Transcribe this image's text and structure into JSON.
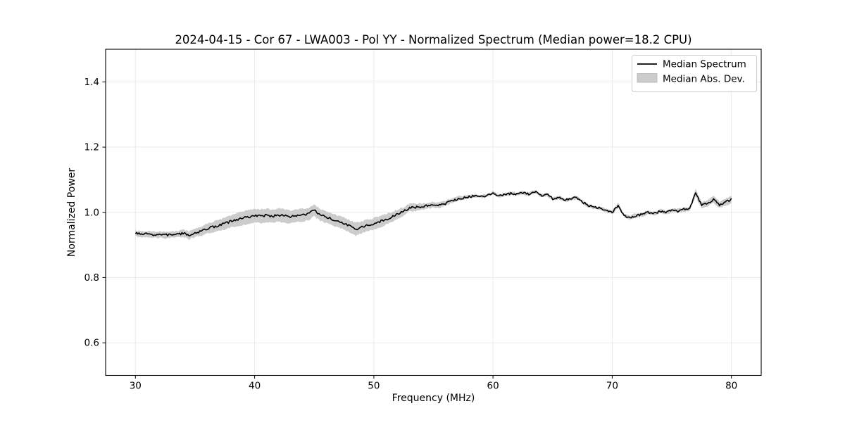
{
  "figure": {
    "title": "2024-04-15 - Cor 67 - LWA003 - Pol YY - Normalized Spectrum (Median power=18.2 CPU)",
    "xlabel": "Frequency (MHz)",
    "ylabel": "Normalized Power"
  },
  "legend": {
    "position": "upper right",
    "items": [
      {
        "label": "Median Spectrum",
        "type": "line",
        "color": "#000000"
      },
      {
        "label": "Median Abs. Dev.",
        "type": "patch",
        "color": "#cccccc"
      }
    ]
  },
  "colors": {
    "line": "#000000",
    "band": "#cccccc",
    "grid": "#e8e8e8",
    "spine": "#000000",
    "background": "#ffffff",
    "legend_border": "#cccccc"
  },
  "chart_data": {
    "type": "line",
    "title": "2024-04-15 - Cor 67 - LWA003 - Pol YY - Normalized Spectrum (Median power=18.2 CPU)",
    "xlabel": "Frequency (MHz)",
    "ylabel": "Normalized Power",
    "xlim": [
      27.5,
      82.5
    ],
    "ylim": [
      0.5,
      1.5
    ],
    "xticks": [
      30,
      40,
      50,
      60,
      70,
      80
    ],
    "yticks": [
      0.6,
      0.8,
      1.0,
      1.2,
      1.4
    ],
    "grid": true,
    "legend_position": "upper right",
    "series": [
      {
        "name": "Median Spectrum",
        "type": "line",
        "color": "#000000",
        "x": [
          30,
          30.5,
          31,
          31.5,
          32,
          32.5,
          33,
          33.5,
          34,
          34.5,
          35,
          35.5,
          36,
          36.5,
          37,
          37.5,
          38,
          38.5,
          39,
          39.5,
          40,
          40.5,
          41,
          41.5,
          42,
          42.5,
          43,
          43.5,
          44,
          44.5,
          45,
          45.5,
          46,
          46.5,
          47,
          47.5,
          48,
          48.5,
          49,
          49.5,
          50,
          50.5,
          51,
          51.5,
          52,
          52.5,
          53,
          53.5,
          54,
          54.5,
          55,
          55.5,
          56,
          56.5,
          57,
          57.5,
          58,
          58.5,
          59,
          59.5,
          60,
          60.5,
          61,
          61.5,
          62,
          62.5,
          63,
          63.5,
          64,
          64.5,
          65,
          65.5,
          66,
          66.5,
          67,
          67.5,
          68,
          68.5,
          69,
          69.5,
          70,
          70.5,
          71,
          71.5,
          72,
          72.5,
          73,
          73.5,
          74,
          74.5,
          75,
          75.5,
          76,
          76.5,
          77,
          77.5,
          78,
          78.5,
          79,
          79.5,
          80
        ],
        "y": [
          0.936,
          0.932,
          0.934,
          0.931,
          0.932,
          0.93,
          0.932,
          0.933,
          0.935,
          0.93,
          0.937,
          0.942,
          0.95,
          0.955,
          0.96,
          0.966,
          0.972,
          0.977,
          0.982,
          0.986,
          0.99,
          0.988,
          0.991,
          0.988,
          0.992,
          0.989,
          0.986,
          0.99,
          0.992,
          0.995,
          1.006,
          0.992,
          0.985,
          0.979,
          0.972,
          0.966,
          0.957,
          0.948,
          0.955,
          0.96,
          0.965,
          0.971,
          0.978,
          0.986,
          0.995,
          1.002,
          1.015,
          1.015,
          1.018,
          1.02,
          1.023,
          1.022,
          1.027,
          1.034,
          1.041,
          1.045,
          1.048,
          1.05,
          1.049,
          1.051,
          1.06,
          1.051,
          1.055,
          1.058,
          1.056,
          1.06,
          1.056,
          1.064,
          1.052,
          1.055,
          1.042,
          1.046,
          1.038,
          1.041,
          1.046,
          1.032,
          1.021,
          1.015,
          1.012,
          1.005,
          0.999,
          1.022,
          0.99,
          0.984,
          0.99,
          0.993,
          1.0,
          0.996,
          1.003,
          0.999,
          1.007,
          1.004,
          1.009,
          1.011,
          1.06,
          1.022,
          1.028,
          1.04,
          1.023,
          1.031,
          1.04
        ]
      },
      {
        "name": "Median Abs. Dev.",
        "type": "band",
        "color": "#cccccc",
        "half_width": [
          0.009,
          0.009,
          0.009,
          0.009,
          0.009,
          0.01,
          0.01,
          0.01,
          0.011,
          0.012,
          0.013,
          0.014,
          0.015,
          0.016,
          0.017,
          0.018,
          0.019,
          0.02,
          0.021,
          0.021,
          0.021,
          0.021,
          0.021,
          0.02,
          0.021,
          0.02,
          0.02,
          0.02,
          0.02,
          0.019,
          0.018,
          0.018,
          0.018,
          0.018,
          0.018,
          0.018,
          0.019,
          0.02,
          0.018,
          0.017,
          0.017,
          0.017,
          0.016,
          0.015,
          0.014,
          0.013,
          0.012,
          0.011,
          0.01,
          0.009,
          0.009,
          0.008,
          0.008,
          0.007,
          0.007,
          0.006,
          0.006,
          0.005,
          0.005,
          0.005,
          0.005,
          0.005,
          0.005,
          0.005,
          0.005,
          0.005,
          0.005,
          0.005,
          0.005,
          0.005,
          0.005,
          0.005,
          0.005,
          0.005,
          0.005,
          0.005,
          0.005,
          0.005,
          0.005,
          0.005,
          0.006,
          0.007,
          0.006,
          0.006,
          0.006,
          0.006,
          0.006,
          0.006,
          0.006,
          0.006,
          0.006,
          0.006,
          0.006,
          0.007,
          0.012,
          0.009,
          0.01,
          0.011,
          0.01,
          0.011,
          0.012
        ]
      }
    ],
    "noise": {
      "seed": 7,
      "line_amplitude": 0.0035,
      "band_amplitude": 0.0025,
      "step": 0.1
    }
  }
}
